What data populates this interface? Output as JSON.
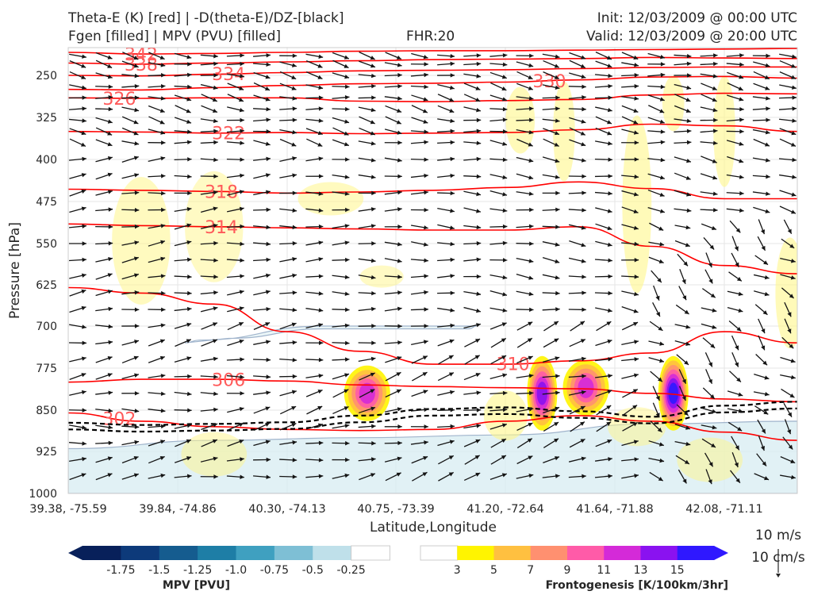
{
  "titles": {
    "left_line1": "Theta-E (K) [red] | -D(theta-E)/DZ-[black]",
    "left_line2": "Fgen [filled] | MPV (PVU) [filled]",
    "center": "FHR:20",
    "right_line1": "Init: 12/03/2009 @ 00:00 UTC",
    "right_line2": "Valid: 12/03/2009 @ 20:00 UTC"
  },
  "chart_data": {
    "type": "cross-section",
    "xlabel": "Latitude,Longitude",
    "ylabel": "Pressure [hPa]",
    "x_ticks": [
      "39.38, -75.59",
      "39.84, -74.86",
      "40.30, -74.13",
      "40.75, -73.39",
      "41.20, -72.64",
      "41.64, -71.88",
      "42.08, -71.11"
    ],
    "y_ticks": [
      250,
      325,
      400,
      475,
      550,
      625,
      700,
      775,
      850,
      925,
      1000
    ],
    "ylim": [
      1000,
      200
    ],
    "x_range": [
      0,
      100
    ],
    "theta_e_contours": [
      {
        "value": 342,
        "points": [
          [
            0,
            209
          ],
          [
            10,
            212
          ],
          [
            20,
            211
          ],
          [
            30,
            209
          ],
          [
            40,
            207
          ],
          [
            50,
            206
          ],
          [
            60,
            206
          ],
          [
            70,
            205
          ],
          [
            80,
            204
          ],
          [
            90,
            203
          ],
          [
            100,
            202
          ]
        ]
      },
      {
        "value": 338,
        "points": [
          [
            0,
            228
          ],
          [
            10,
            230
          ],
          [
            20,
            228
          ],
          [
            30,
            226
          ],
          [
            40,
            224
          ],
          [
            50,
            222
          ],
          [
            60,
            221
          ],
          [
            70,
            220
          ],
          [
            80,
            218
          ],
          [
            90,
            219
          ],
          [
            100,
            220
          ]
        ]
      },
      {
        "value": 334,
        "points": [
          [
            0,
            250
          ],
          [
            10,
            251
          ],
          [
            20,
            248
          ],
          [
            30,
            245
          ],
          [
            40,
            242
          ],
          [
            50,
            241
          ],
          [
            60,
            240
          ],
          [
            70,
            238
          ],
          [
            80,
            236
          ],
          [
            90,
            235
          ],
          [
            100,
            235
          ]
        ]
      },
      {
        "value": 330,
        "points": [
          [
            0,
            275
          ],
          [
            10,
            276
          ],
          [
            20,
            272
          ],
          [
            30,
            268
          ],
          [
            40,
            265
          ],
          [
            50,
            264
          ],
          [
            60,
            262
          ],
          [
            70,
            258
          ],
          [
            80,
            253
          ],
          [
            90,
            252
          ],
          [
            100,
            255
          ]
        ]
      },
      {
        "value": 326,
        "points": [
          [
            0,
            290
          ],
          [
            10,
            291
          ],
          [
            20,
            290
          ],
          [
            30,
            290
          ],
          [
            40,
            296
          ],
          [
            50,
            297
          ],
          [
            60,
            295
          ],
          [
            70,
            293
          ],
          [
            80,
            285
          ],
          [
            90,
            282
          ],
          [
            100,
            283
          ]
        ]
      },
      {
        "value": 322,
        "points": [
          [
            0,
            350
          ],
          [
            10,
            351
          ],
          [
            20,
            353
          ],
          [
            30,
            352
          ],
          [
            40,
            354
          ],
          [
            50,
            353
          ],
          [
            60,
            352
          ],
          [
            70,
            347
          ],
          [
            80,
            337
          ],
          [
            90,
            340
          ],
          [
            100,
            350
          ]
        ]
      },
      {
        "value": 318,
        "points": [
          [
            0,
            453
          ],
          [
            10,
            455
          ],
          [
            20,
            457
          ],
          [
            30,
            460
          ],
          [
            40,
            458
          ],
          [
            50,
            455
          ],
          [
            60,
            450
          ],
          [
            70,
            440
          ],
          [
            80,
            452
          ],
          [
            90,
            470
          ],
          [
            100,
            470
          ]
        ]
      },
      {
        "value": 314,
        "points": [
          [
            0,
            515
          ],
          [
            10,
            518
          ],
          [
            20,
            520
          ],
          [
            30,
            522
          ],
          [
            40,
            524
          ],
          [
            50,
            526
          ],
          [
            60,
            526
          ],
          [
            70,
            520
          ],
          [
            80,
            555
          ],
          [
            90,
            590
          ],
          [
            100,
            605
          ]
        ]
      },
      {
        "value": 310,
        "points": [
          [
            0,
            630
          ],
          [
            10,
            640
          ],
          [
            20,
            660
          ],
          [
            30,
            710
          ],
          [
            40,
            745
          ],
          [
            50,
            768
          ],
          [
            60,
            768
          ],
          [
            70,
            762
          ],
          [
            80,
            748
          ],
          [
            90,
            710
          ],
          [
            100,
            730
          ]
        ]
      },
      {
        "value": 306,
        "points": [
          [
            0,
            800
          ],
          [
            10,
            795
          ],
          [
            20,
            795
          ],
          [
            30,
            798
          ],
          [
            40,
            805
          ],
          [
            50,
            808
          ],
          [
            60,
            810
          ],
          [
            70,
            812
          ],
          [
            80,
            820
          ],
          [
            90,
            830
          ],
          [
            100,
            835
          ]
        ]
      },
      {
        "value": 302,
        "points": [
          [
            0,
            855
          ],
          [
            10,
            870
          ],
          [
            20,
            880
          ],
          [
            30,
            885
          ],
          [
            40,
            887
          ],
          [
            50,
            885
          ],
          [
            60,
            870
          ],
          [
            70,
            860
          ],
          [
            80,
            870
          ],
          [
            90,
            890
          ],
          [
            100,
            905
          ]
        ]
      }
    ],
    "neg_dthetae_dz_contour": {
      "points": [
        [
          0,
          873
        ],
        [
          10,
          877
        ],
        [
          20,
          875
        ],
        [
          30,
          872
        ],
        [
          40,
          860
        ],
        [
          50,
          848
        ],
        [
          60,
          845
        ],
        [
          70,
          852
        ],
        [
          80,
          862
        ],
        [
          90,
          842
        ],
        [
          100,
          835
        ]
      ]
    },
    "frontogenesis_max": [
      {
        "x": 41,
        "p": 820,
        "value": 11
      },
      {
        "x": 65,
        "p": 820,
        "value": 13
      },
      {
        "x": 71,
        "p": 810,
        "value": 11
      },
      {
        "x": 83,
        "p": 820,
        "value": 15
      }
    ],
    "mpv_negative_region": {
      "value": -0.25,
      "points": [
        [
          0,
          920
        ],
        [
          20,
          905
        ],
        [
          40,
          900
        ],
        [
          60,
          895
        ],
        [
          80,
          875
        ],
        [
          100,
          870
        ]
      ]
    },
    "wind_reference": {
      "label_ms": "10 m/s",
      "label_cms": "10 cm/s"
    }
  },
  "colorbars": {
    "mpv": {
      "label": "MPV [PVU]",
      "ticks": [
        "-1.75",
        "-1.5",
        "-1.25",
        "-1.0",
        "-0.75",
        "-0.5",
        "-0.25"
      ],
      "colors": [
        "#08205a",
        "#0d3a7a",
        "#155c8f",
        "#1e7ea6",
        "#3fa0c0",
        "#7ebfd5",
        "#bfe0ea",
        "#ffffff"
      ]
    },
    "fgen": {
      "label": "Frontogenesis [K/100km/3hr]",
      "ticks": [
        "3",
        "5",
        "7",
        "9",
        "11",
        "13",
        "15"
      ],
      "colors": [
        "#ffffff",
        "#fff400",
        "#ffc040",
        "#ff9070",
        "#ff5ba8",
        "#d42ad8",
        "#8a12f0",
        "#2f18ff",
        "#2f18ff"
      ]
    }
  },
  "colors": {
    "theta_e": "#ff0000",
    "theta_e_label": "#ff5a5a",
    "stability": "#000000",
    "mpv_line": "#a0b4cc",
    "arrow": "#141414"
  }
}
